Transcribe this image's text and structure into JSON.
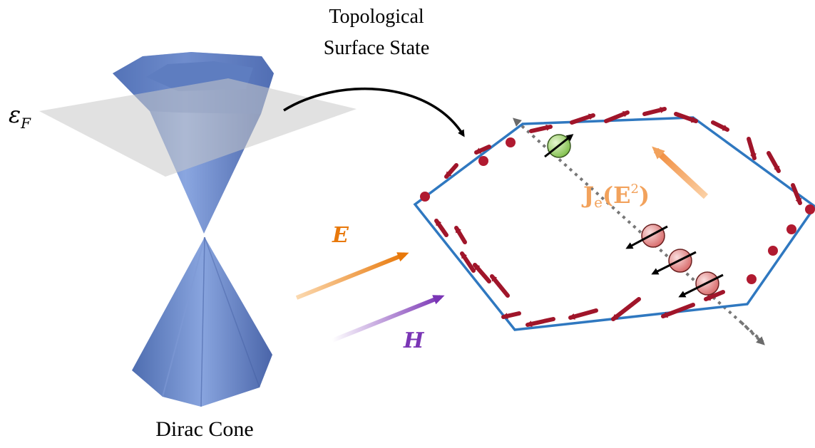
{
  "labels": {
    "tss_line1": "Topological",
    "tss_line2": "Surface State",
    "fermi": "ε",
    "fermi_sub": "F",
    "dirac": "Dirac Cone",
    "efield": "E",
    "hfield": "H",
    "current_j": "J",
    "current_sub": "e",
    "current_arg": "(E",
    "current_exp": "2",
    "current_close": ")"
  },
  "colors": {
    "cone": "#6a88c8",
    "cone_dark": "#4b66a8",
    "fermi_plane": "#c8c8c8",
    "hexagon": "#2f78c0",
    "spin_arrow": "#a0152a",
    "efield": "#e8780a",
    "hfield": "#7a35b5",
    "current": "#f2a25c",
    "electron_green": "#9cd16a",
    "electron_red": "#e88a8a",
    "axis_dotted": "#777777"
  }
}
